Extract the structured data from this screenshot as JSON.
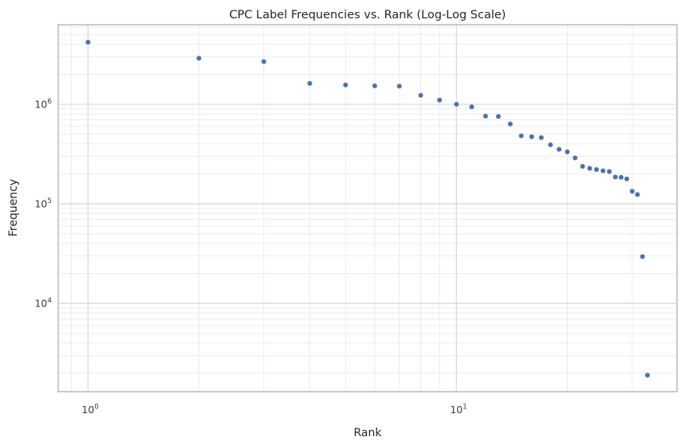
{
  "chart_data": {
    "type": "scatter",
    "title": "CPC Label Frequencies vs. Rank (Log-Log Scale)",
    "xlabel": "Rank",
    "ylabel": "Frequency",
    "x_scale": "log",
    "y_scale": "log",
    "xlim": [
      0.83,
      39.7
    ],
    "ylim": [
      1300,
      6300000
    ],
    "grid": "major-and-minor",
    "legend": "none",
    "x": [
      1,
      2,
      3,
      4,
      5,
      6,
      7,
      8,
      9,
      10,
      11,
      12,
      13,
      14,
      15,
      16,
      17,
      18,
      19,
      20,
      21,
      22,
      23,
      24,
      25,
      26,
      27,
      28,
      29,
      30,
      31,
      32,
      33
    ],
    "y": [
      4200000,
      2900000,
      2680000,
      1620000,
      1560000,
      1530000,
      1520000,
      1230000,
      1100000,
      1000000,
      940000,
      760000,
      755000,
      635000,
      482000,
      472000,
      462000,
      392000,
      353000,
      333000,
      289000,
      238000,
      227000,
      221000,
      215000,
      211000,
      186000,
      185000,
      178000,
      134000,
      124000,
      29500,
      1900
    ],
    "x_ticks": [
      {
        "value": 1,
        "label": "10⁰",
        "exponent": 0
      },
      {
        "value": 10,
        "label": "10¹",
        "exponent": 1
      }
    ],
    "y_ticks": [
      {
        "value": 1000000,
        "label": "10⁶",
        "exponent": 6
      },
      {
        "value": 100000,
        "label": "10⁵",
        "exponent": 5
      },
      {
        "value": 10000,
        "label": "10⁴",
        "exponent": 4
      }
    ],
    "colors": {
      "point": "#4c72b0",
      "grid_minor": "#ebebeb",
      "grid_major": "#d9d9d9",
      "spine": "#cbcbcb",
      "text": "#262626"
    }
  }
}
